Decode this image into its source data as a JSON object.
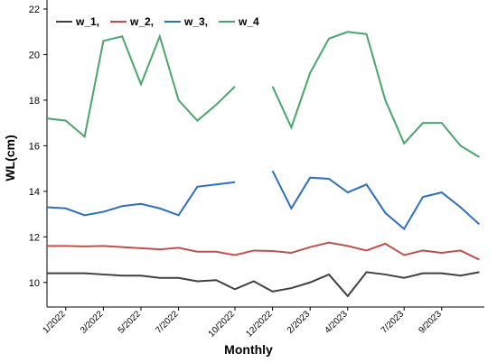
{
  "chart_data": {
    "type": "line",
    "x_label": "Monthly",
    "y_label": "WL(cm)",
    "categories": [
      null,
      "1/2022",
      null,
      "3/2022",
      null,
      "5/2022",
      null,
      "7/2022",
      null,
      null,
      "10/2022",
      null,
      "12/2022",
      null,
      "2/2023",
      null,
      "4/2023",
      null,
      null,
      "7/2023",
      null,
      "9/2023",
      null,
      null
    ],
    "series": [
      {
        "name": "w_1,",
        "color": "#404040",
        "values": [
          10.4,
          10.4,
          10.4,
          10.35,
          10.3,
          10.3,
          10.2,
          10.2,
          10.05,
          10.1,
          9.7,
          10.05,
          9.6,
          9.75,
          10.0,
          10.35,
          9.4,
          10.45,
          10.35,
          10.2,
          10.4,
          10.4,
          10.3,
          10.45
        ]
      },
      {
        "name": "w_2,",
        "color": "#c0504d",
        "values": [
          11.6,
          11.6,
          11.58,
          11.6,
          11.55,
          11.5,
          11.45,
          11.52,
          11.35,
          11.35,
          11.2,
          11.4,
          11.38,
          11.3,
          11.55,
          11.75,
          11.6,
          11.4,
          11.7,
          11.2,
          11.4,
          11.3,
          11.4,
          11.0
        ]
      },
      {
        "name": "w_3,",
        "color": "#2e6fbd",
        "values": [
          13.3,
          13.25,
          12.95,
          13.1,
          13.35,
          13.45,
          13.25,
          12.95,
          14.2,
          14.3,
          14.4,
          null,
          14.9,
          13.25,
          14.6,
          14.55,
          13.95,
          14.3,
          13.05,
          12.35,
          13.75,
          13.95,
          13.3,
          12.55
        ]
      },
      {
        "name": "w_4",
        "color": "#4aa56a",
        "values": [
          17.2,
          17.1,
          16.4,
          20.6,
          20.8,
          18.7,
          20.8,
          18.0,
          17.1,
          17.8,
          18.6,
          null,
          18.6,
          16.8,
          19.2,
          20.7,
          21.0,
          20.9,
          18.0,
          16.1,
          17.0,
          17.0,
          16.0,
          15.5
        ]
      }
    ],
    "ylim": [
      9,
      22
    ],
    "yticks": [
      10,
      12,
      14,
      16,
      18,
      20,
      22
    ]
  }
}
